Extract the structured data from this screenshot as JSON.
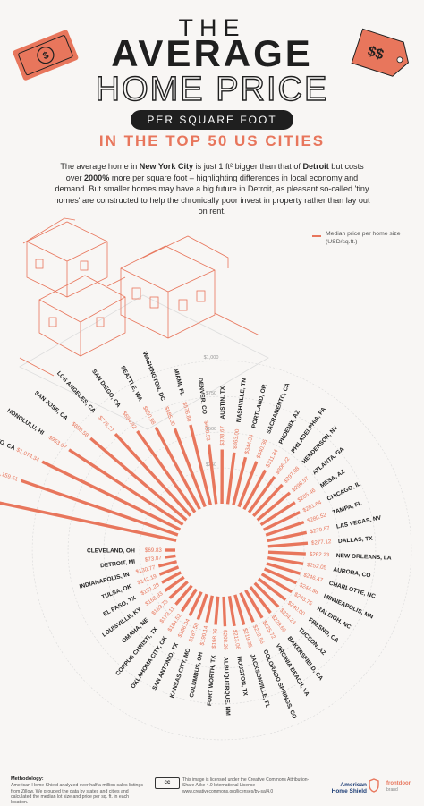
{
  "header": {
    "line1": "THE",
    "line2": "AVERAGE",
    "line3": "HOME PRICE",
    "pill": "PER SQUARE FOOT",
    "subtitle": "IN THE TOP 50 US CITIES"
  },
  "intro": {
    "p1": "The average home in ",
    "city1": "New York City",
    "p2": " is just 1 ft² bigger than that of ",
    "city2": "Detroit",
    "p3": " but costs over ",
    "pct": "2000%",
    "p4": " more per square foot – highlighting differences in local economy and demand. But smaller homes may have a big future in Detroit, as pleasant so-called 'tiny homes' are constructed to help the chronically poor invest in property rather than lay out on rent."
  },
  "legend": {
    "label": "Median price per home size (USD/sq.ft.)"
  },
  "decor": {
    "left_tag_icon": "dollar-banknote-icon",
    "right_tag_icon": "price-tag-icon",
    "right_tag_text": "$$"
  },
  "colors": {
    "bar": "#e8765c",
    "text": "#1f1f1f",
    "grid": "#d9d9d9",
    "background": "#f8f6f4"
  },
  "chart_data": {
    "type": "bar",
    "layout": "radial",
    "title": "The Average Home Price per Square Foot in the Top 50 US Cities",
    "ylabel": "Median price per home size (USD/sq.ft.)",
    "ylim": [
      0,
      1519.57
    ],
    "ticks": [
      {
        "value": 250,
        "label": "$250"
      },
      {
        "value": 500,
        "label": "$500"
      },
      {
        "value": 750,
        "label": "$750"
      },
      {
        "value": 1000,
        "label": "$1,000"
      }
    ],
    "categories": [
      "NEW YORK, NY",
      "BOSTON, MA",
      "SAN FRANCISCO, CA",
      "HONOLULU, HI",
      "SAN JOSE, CA",
      "LOS ANGELES, CA",
      "SAN DIEGO, CA",
      "SEATTLE, WA",
      "WASHINGTON, DC",
      "MIAMI, FL",
      "DENVER, CO",
      "AUSTIN, TX",
      "NASHVILLE, TN",
      "PORTLAND, OR",
      "SACRAMENTO, CA",
      "PHOENIX, AZ",
      "PHILADELPHIA, PA",
      "HENDERSON, NV",
      "ATLANTA, GA",
      "MESA, AZ",
      "CHICAGO, IL",
      "TAMPA, FL",
      "LAS VEGAS, NV",
      "DALLAS, TX",
      "NEW ORLEANS, LA",
      "AURORA, CO",
      "CHARLOTTE, NC",
      "MINNEAPOLIS, MN",
      "RALEIGH, NC",
      "FRESNO, CA",
      "TUCSON, AZ",
      "BAKERSFIELD, CA",
      "VIRGINIA BEACH, VA",
      "COLORADO SPRINGS, CO",
      "JACKSONVILLE, FL",
      "HOUSTON, TX",
      "ALBUQUERQUE, NM",
      "FORT WORTH, TX",
      "COLUMBUS, OH",
      "KANSAS CITY, MO",
      "SAN ANTONIO, TX",
      "OKLAHOMA CITY, OK",
      "CORPUS CHRISTI, TX",
      "OMAHA, NE",
      "LOUISVILLE, KY",
      "EL PASO, TX",
      "TULSA, OK",
      "INDIANAPOLIS, IN",
      "DETROIT, MI",
      "CLEVELAND, OH"
    ],
    "values": [
      1519.57,
      1159.51,
      1074.34,
      953.07,
      880.58,
      776.27,
      694.92,
      650.58,
      585.0,
      576.88,
      420.53,
      378.67,
      363.0,
      344.34,
      340.36,
      311.84,
      306.22,
      297.08,
      296.57,
      285.46,
      281.64,
      280.52,
      279.87,
      277.12,
      262.23,
      252.05,
      246.47,
      244.36,
      243.75,
      240.0,
      234.24,
      229.66,
      225.72,
      222.56,
      219.35,
      213.06,
      208.26,
      198.76,
      190.14,
      187.5,
      186.04,
      184.52,
      173.11,
      169.75,
      162.93,
      151.28,
      142.19,
      130.77,
      73.87,
      69.83
    ],
    "value_labels": [
      "$1,519.57",
      "$1,159.51",
      "$1,074.34",
      "$953.07",
      "$880.58",
      "$776.27",
      "$694.92",
      "$650.58",
      "$585.00",
      "$576.88",
      "$420.53",
      "$378.67",
      "$363.00",
      "$344.34",
      "$340.36",
      "$311.84",
      "$306.22",
      "$297.08",
      "$296.57",
      "$285.46",
      "$281.64",
      "$280.52",
      "$279.87",
      "$277.12",
      "$262.23",
      "$252.05",
      "$246.47",
      "$244.36",
      "$243.75",
      "$240.00",
      "$234.24",
      "$229.66",
      "$225.72",
      "$222.56",
      "$219.35",
      "$213.06",
      "$208.26",
      "$198.76",
      "$190.14",
      "$187.50",
      "$186.04",
      "$184.52",
      "$173.11",
      "$169.75",
      "$162.93",
      "$151.28",
      "$142.19",
      "$130.77",
      "$73.87",
      "$69.83"
    ]
  },
  "footer": {
    "methodology_title": "Methodology:",
    "methodology_text": "American Home Shield analyzed over half a million sales listings from Zillow. We grouped the data by states and cities and calculated the median lot size and price per sq. ft. in each location.",
    "license_badge": "cc",
    "license_text": "This image is licensed under the Creative Commons Attribution-Share Alike 4.0 International License - www.creativecommons.org/licenses/by-sa/4.0",
    "brand1": "American Home Shield",
    "brand2": "frontdoor",
    "brand2_sub": "brand"
  }
}
